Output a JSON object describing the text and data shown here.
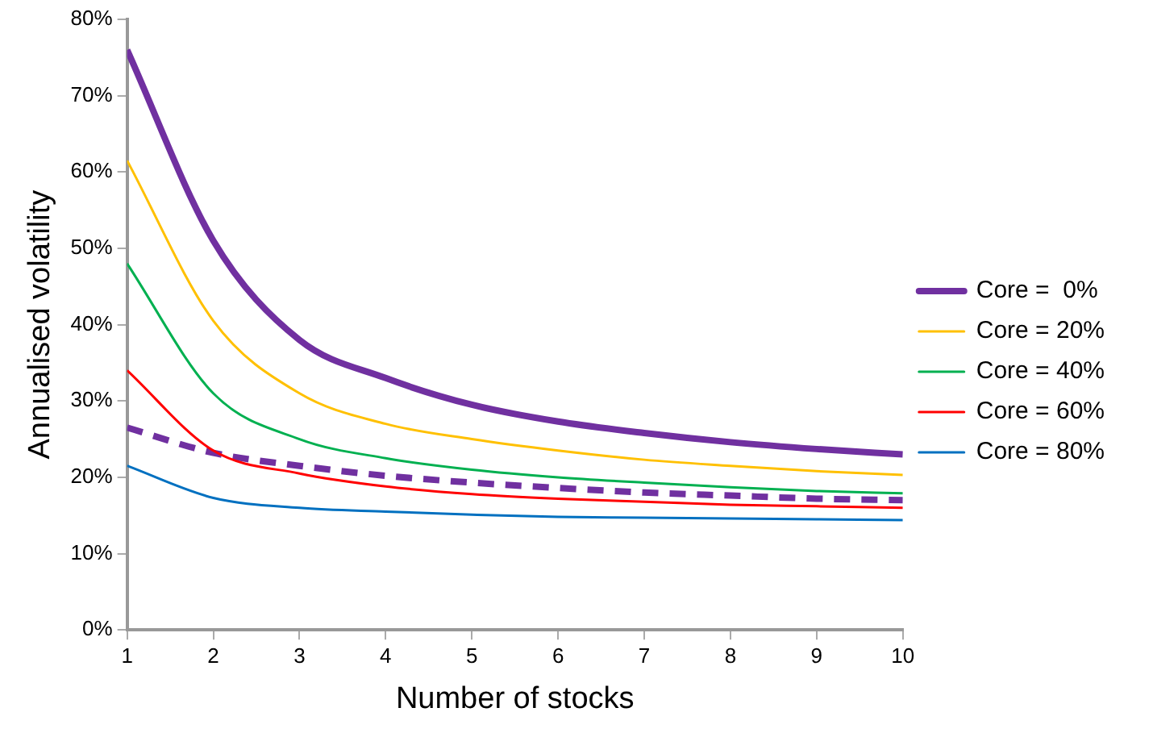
{
  "chart_data": {
    "type": "line",
    "xlabel": "Number of stocks",
    "ylabel": "Annualised volatility",
    "x": [
      1,
      2,
      3,
      4,
      5,
      6,
      7,
      8,
      9,
      10
    ],
    "xlim": [
      1,
      10
    ],
    "xticks": [
      1,
      2,
      3,
      4,
      5,
      6,
      7,
      8,
      9,
      10
    ],
    "ylim": [
      0,
      80
    ],
    "yticks": [
      {
        "value": 0,
        "label": "0%"
      },
      {
        "value": 10,
        "label": "10%"
      },
      {
        "value": 20,
        "label": "20%"
      },
      {
        "value": 30,
        "label": "30%"
      },
      {
        "value": 40,
        "label": "40%"
      },
      {
        "value": 50,
        "label": "50%"
      },
      {
        "value": 60,
        "label": "60%"
      },
      {
        "value": 70,
        "label": "70%"
      },
      {
        "value": 80,
        "label": "80%"
      }
    ],
    "grid": false,
    "legend": "right",
    "marker": "none",
    "line_style": "solid",
    "series": [
      {
        "name": "Core =  0%",
        "color": "#7030a0",
        "values": [
          76,
          51,
          38,
          33,
          29.5,
          27.3,
          25.8,
          24.6,
          23.7,
          23
        ]
      },
      {
        "name": "Core = 20%",
        "color": "#ffc000",
        "values": [
          61.5,
          40.5,
          31,
          27,
          25,
          23.5,
          22.3,
          21.5,
          20.8,
          20.3
        ]
      },
      {
        "name": "Core = 40%",
        "color": "#00b050",
        "values": [
          48,
          31,
          25,
          22.5,
          21,
          20,
          19.3,
          18.7,
          18.2,
          17.9
        ]
      },
      {
        "name": "Core = 60%",
        "color": "#ff0000",
        "values": [
          34,
          23.5,
          20.5,
          18.8,
          17.8,
          17.2,
          16.8,
          16.4,
          16.2,
          16
        ]
      },
      {
        "name": "Core = 80%",
        "color": "#0070c0",
        "values": [
          21.5,
          17.3,
          16,
          15.5,
          15.1,
          14.8,
          14.7,
          14.6,
          14.5,
          14.4
        ]
      },
      {
        "color": "#7030a0",
        "line_style": "dashed",
        "values": [
          26.5,
          23.2,
          21.5,
          20.2,
          19.3,
          18.6,
          18,
          17.6,
          17.2,
          17
        ]
      }
    ]
  }
}
